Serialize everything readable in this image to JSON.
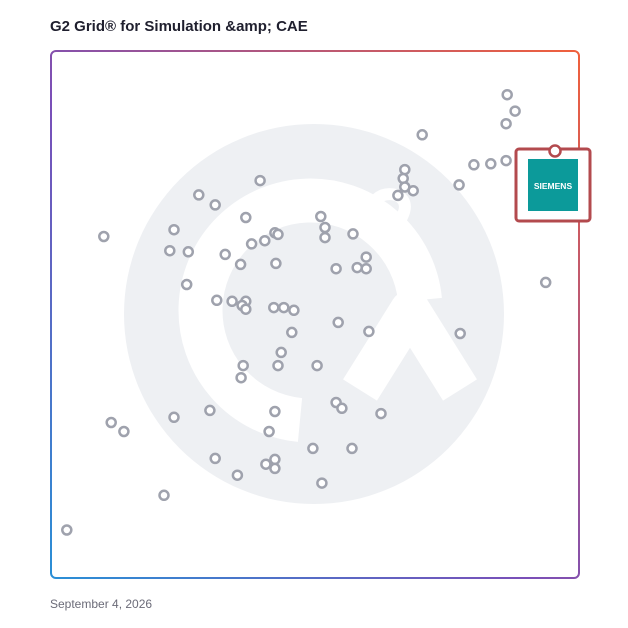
{
  "title": "G2 Grid® for Simulation &amp; CAE",
  "date": "September 4, 2026",
  "chart_data": {
    "type": "scatter",
    "title": "G2 Grid® for Simulation &amp; CAE",
    "xlabel": "",
    "ylabel": "",
    "xlim": [
      0,
      100
    ],
    "ylim": [
      0,
      100
    ],
    "grid": false,
    "quadrant_dividers": {
      "x": 50,
      "y": 50
    },
    "highlight": {
      "label": "SIEMENS",
      "x": 95,
      "y": 81,
      "color": "#0c9a9a"
    },
    "points": [
      {
        "x": 86.4,
        "y": 91.7
      },
      {
        "x": 87.9,
        "y": 88.6
      },
      {
        "x": 86.2,
        "y": 86.2
      },
      {
        "x": 70.3,
        "y": 84.1
      },
      {
        "x": 86.2,
        "y": 79.2
      },
      {
        "x": 83.3,
        "y": 78.6
      },
      {
        "x": 80.1,
        "y": 78.4
      },
      {
        "x": 67.0,
        "y": 77.5
      },
      {
        "x": 66.7,
        "y": 75.8
      },
      {
        "x": 67.0,
        "y": 74.2
      },
      {
        "x": 68.6,
        "y": 73.5
      },
      {
        "x": 77.3,
        "y": 74.6
      },
      {
        "x": 65.7,
        "y": 72.6
      },
      {
        "x": 39.6,
        "y": 75.4
      },
      {
        "x": 28.0,
        "y": 72.7
      },
      {
        "x": 31.1,
        "y": 70.8
      },
      {
        "x": 36.9,
        "y": 68.4
      },
      {
        "x": 51.1,
        "y": 68.6
      },
      {
        "x": 51.9,
        "y": 66.5
      },
      {
        "x": 51.9,
        "y": 64.6
      },
      {
        "x": 57.2,
        "y": 65.3
      },
      {
        "x": 23.3,
        "y": 66.1
      },
      {
        "x": 10.0,
        "y": 64.8
      },
      {
        "x": 42.4,
        "y": 65.5
      },
      {
        "x": 43.0,
        "y": 65.2
      },
      {
        "x": 40.5,
        "y": 64.0
      },
      {
        "x": 38.0,
        "y": 63.4
      },
      {
        "x": 22.5,
        "y": 62.1
      },
      {
        "x": 26.0,
        "y": 61.9
      },
      {
        "x": 33.0,
        "y": 61.4
      },
      {
        "x": 59.7,
        "y": 60.9
      },
      {
        "x": 35.9,
        "y": 59.5
      },
      {
        "x": 42.6,
        "y": 59.7
      },
      {
        "x": 54.0,
        "y": 58.7
      },
      {
        "x": 58.0,
        "y": 58.9
      },
      {
        "x": 59.7,
        "y": 58.7
      },
      {
        "x": 25.7,
        "y": 55.7
      },
      {
        "x": 93.7,
        "y": 56.1
      },
      {
        "x": 31.4,
        "y": 52.7
      },
      {
        "x": 34.3,
        "y": 52.5
      },
      {
        "x": 36.9,
        "y": 52.5
      },
      {
        "x": 36.2,
        "y": 51.7
      },
      {
        "x": 36.9,
        "y": 51.0
      },
      {
        "x": 42.2,
        "y": 51.3
      },
      {
        "x": 44.1,
        "y": 51.3
      },
      {
        "x": 46.0,
        "y": 50.8
      },
      {
        "x": 54.4,
        "y": 48.5
      },
      {
        "x": 45.6,
        "y": 46.6
      },
      {
        "x": 60.2,
        "y": 46.8
      },
      {
        "x": 77.5,
        "y": 46.4
      },
      {
        "x": 43.6,
        "y": 42.8
      },
      {
        "x": 36.4,
        "y": 40.3
      },
      {
        "x": 43.0,
        "y": 40.3
      },
      {
        "x": 50.4,
        "y": 40.3
      },
      {
        "x": 36.0,
        "y": 38.0
      },
      {
        "x": 54.0,
        "y": 33.3
      },
      {
        "x": 55.1,
        "y": 32.2
      },
      {
        "x": 30.1,
        "y": 31.8
      },
      {
        "x": 42.4,
        "y": 31.6
      },
      {
        "x": 62.5,
        "y": 31.2
      },
      {
        "x": 23.3,
        "y": 30.5
      },
      {
        "x": 11.4,
        "y": 29.5
      },
      {
        "x": 13.8,
        "y": 27.8
      },
      {
        "x": 41.3,
        "y": 27.8
      },
      {
        "x": 49.6,
        "y": 24.6
      },
      {
        "x": 57.0,
        "y": 24.6
      },
      {
        "x": 31.1,
        "y": 22.7
      },
      {
        "x": 42.4,
        "y": 22.5
      },
      {
        "x": 40.7,
        "y": 21.6
      },
      {
        "x": 42.4,
        "y": 20.8
      },
      {
        "x": 35.3,
        "y": 19.5
      },
      {
        "x": 51.3,
        "y": 18.0
      },
      {
        "x": 21.4,
        "y": 15.7
      },
      {
        "x": 3.0,
        "y": 9.1
      }
    ]
  }
}
